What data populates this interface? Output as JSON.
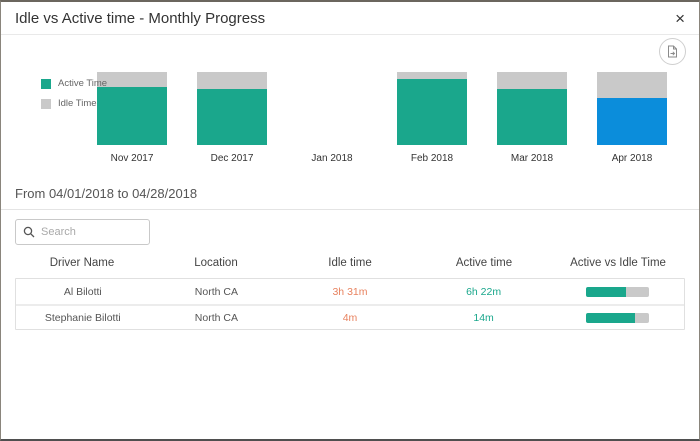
{
  "dialog": {
    "title": "Idle vs Active time - Monthly Progress",
    "close_glyph": "×"
  },
  "colors": {
    "active": "#1aa78c",
    "active_selected": "#0b8ddb",
    "idle": "#c9c9c9",
    "idle_text": "#e8825f",
    "active_text": "#1aa78c"
  },
  "chart_data": {
    "type": "bar",
    "stacked": true,
    "categories": [
      "Nov 2017",
      "Dec 2017",
      "Jan 2018",
      "Feb 2018",
      "Mar 2018",
      "Apr 2018"
    ],
    "series": [
      {
        "name": "Active Time",
        "values": [
          79,
          77,
          0,
          90,
          77,
          64
        ]
      },
      {
        "name": "Idle Time",
        "values": [
          21,
          23,
          0,
          10,
          23,
          36
        ]
      }
    ],
    "value_unit": "percent-of-total-time",
    "highlighted_category": "Apr 2018",
    "legend_position": "left",
    "grid": false
  },
  "legend": {
    "items": [
      {
        "label": "Active Time",
        "color": "#1aa78c"
      },
      {
        "label": "Idle Time",
        "color": "#c9c9c9"
      }
    ]
  },
  "period": {
    "label": "From 04/01/2018 to 04/28/2018"
  },
  "search": {
    "placeholder": "Search"
  },
  "table": {
    "columns": [
      "Driver Name",
      "Location",
      "Idle time",
      "Active time",
      "Active vs Idle Time"
    ],
    "rows": [
      {
        "driver": "Al Bilotti",
        "location": "North CA",
        "idle_time": "3h 31m",
        "active_time": "6h 22m",
        "active_pct": 64
      },
      {
        "driver": "Stephanie Bilotti",
        "location": "North CA",
        "idle_time": "4m",
        "active_time": "14m",
        "active_pct": 78
      }
    ]
  }
}
